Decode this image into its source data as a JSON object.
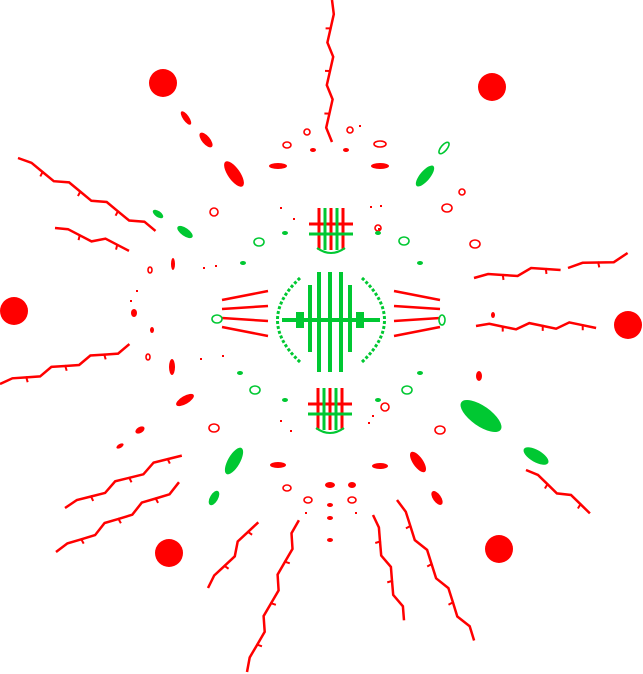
{
  "palette": {
    "background": "#ffffff",
    "red": "#ff0000",
    "green": "#00c832"
  }
}
